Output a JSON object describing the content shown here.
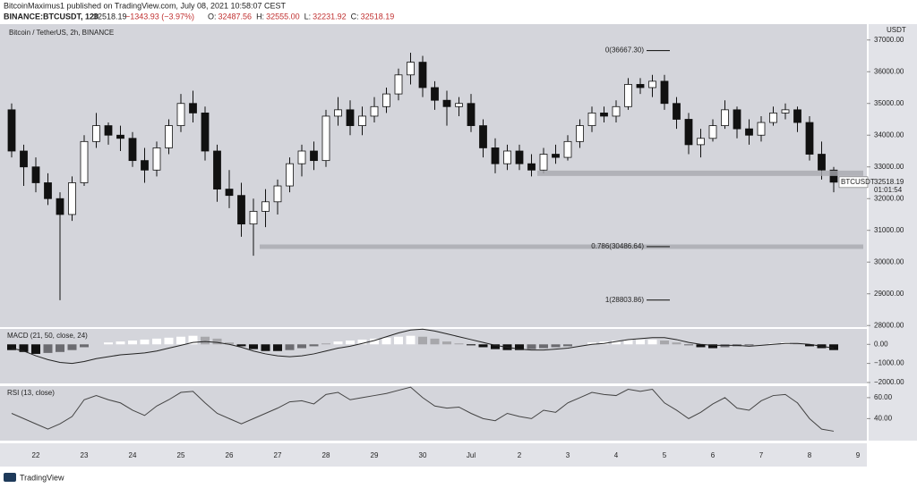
{
  "header": {
    "author_line": "BitcoinMaximus1 published on TradingView.com, July 08, 2021 10:58:07 CEST",
    "symbol": "BINANCE:BTCUSDT, 120",
    "last": "32518.19",
    "change": "−1343.93 (−3.97%)",
    "ohlc": [
      "O:",
      "32487.56",
      "H:",
      "32555.00",
      "L:",
      "32231.92",
      "C:",
      "32518.19"
    ]
  },
  "footer": "TradingView",
  "chart_data": [
    {
      "type": "candlestick",
      "title": "Bitcoin / TetherUS, 2h, BINANCE",
      "axis_unit": "USDT",
      "categories": [
        null,
        null,
        "22",
        null,
        null,
        null,
        "23",
        null,
        null,
        null,
        "24",
        null,
        null,
        null,
        "25",
        null,
        null,
        null,
        "26",
        null,
        null,
        null,
        "27",
        null,
        null,
        null,
        "28",
        null,
        null,
        null,
        "29",
        null,
        null,
        null,
        "30",
        null,
        null,
        null,
        "Jul",
        null,
        null,
        null,
        "2",
        null,
        null,
        null,
        "3",
        null,
        null,
        null,
        "4",
        null,
        null,
        null,
        "5",
        null,
        null,
        null,
        "6",
        null,
        null,
        null,
        "7",
        null,
        null,
        null,
        "8",
        null,
        null,
        null,
        "9"
      ],
      "open": [
        34800,
        33500,
        33000,
        32500,
        32000,
        31500,
        32500,
        33800,
        34300,
        34000,
        33900,
        33200,
        32900,
        33600,
        34300,
        35000,
        34700,
        33500,
        32300,
        32100,
        31200,
        31600,
        31900,
        32400,
        33100,
        33500,
        33200,
        34600,
        34800,
        34300,
        34600,
        34900,
        35300,
        35900,
        36300,
        35500,
        35100,
        34900,
        35000,
        34300,
        33600,
        33100,
        33500,
        33100,
        32900,
        33400,
        33300,
        33800,
        34300,
        34700,
        34600,
        34900,
        35600,
        35500,
        35700,
        35000,
        34500,
        33700,
        33900,
        34300,
        34800,
        34200,
        34000,
        34400,
        34700,
        34800,
        34400,
        33400,
        32900,
        null,
        null
      ],
      "high": [
        35000,
        33700,
        33300,
        32800,
        32200,
        32700,
        34000,
        34700,
        34400,
        34300,
        34100,
        33600,
        33800,
        34500,
        35300,
        35400,
        34900,
        33700,
        32900,
        32500,
        32000,
        32300,
        32600,
        33300,
        33700,
        33800,
        34800,
        35200,
        35100,
        34900,
        35200,
        35500,
        36100,
        36600,
        36500,
        35700,
        35400,
        35200,
        35300,
        34500,
        33900,
        33700,
        33700,
        33400,
        33600,
        33700,
        34000,
        34500,
        34900,
        34900,
        35100,
        35800,
        35800,
        35900,
        35900,
        35200,
        34700,
        34200,
        34500,
        35100,
        34900,
        34500,
        34600,
        34900,
        35000,
        34900,
        34600,
        33800,
        33000,
        null,
        null
      ],
      "low": [
        33300,
        32400,
        32200,
        31800,
        28800,
        31300,
        32400,
        33600,
        33700,
        33500,
        33000,
        32500,
        32700,
        33400,
        34100,
        34400,
        33200,
        31900,
        31700,
        30800,
        30200,
        31100,
        31500,
        32200,
        32700,
        32900,
        33000,
        34300,
        34000,
        34000,
        34400,
        34700,
        35100,
        35600,
        35200,
        34800,
        34300,
        34600,
        34100,
        33300,
        32800,
        32900,
        32900,
        32700,
        32800,
        33100,
        33200,
        33600,
        34100,
        34400,
        34400,
        34800,
        35300,
        35200,
        34800,
        34200,
        33400,
        33300,
        33800,
        34200,
        33900,
        33700,
        33800,
        34300,
        34500,
        34100,
        33200,
        32600,
        32200,
        null,
        null
      ],
      "close": [
        33500,
        33000,
        32500,
        32000,
        31500,
        32500,
        33800,
        34300,
        34000,
        33900,
        33200,
        32900,
        33600,
        34300,
        35000,
        34700,
        33500,
        32300,
        32100,
        31200,
        31600,
        31900,
        32400,
        33100,
        33500,
        33200,
        34600,
        34800,
        34300,
        34600,
        34900,
        35300,
        35900,
        36300,
        35500,
        35100,
        34900,
        35000,
        34300,
        33600,
        33100,
        33500,
        33100,
        32900,
        33400,
        33300,
        33800,
        34300,
        34700,
        34600,
        34900,
        35600,
        35500,
        35700,
        35000,
        34500,
        33700,
        33900,
        34300,
        34800,
        34200,
        34000,
        34400,
        34700,
        34800,
        34400,
        33400,
        32900,
        32518.19,
        null,
        null
      ],
      "up_color": "#ffffff",
      "down_color": "#111111",
      "ylim": [
        27950,
        37500
      ],
      "yticks": [
        {
          "value": 28000,
          "label": "28000.00"
        },
        {
          "value": 29000,
          "label": "29000.00"
        },
        {
          "value": 30000,
          "label": "30000.00"
        },
        {
          "value": 31000,
          "label": "31000.00"
        },
        {
          "value": 32000,
          "label": "32000.00"
        },
        {
          "value": 33000,
          "label": "33000.00"
        },
        {
          "value": 34000,
          "label": "34000.00"
        },
        {
          "value": 35000,
          "label": "35000.00"
        },
        {
          "value": 36000,
          "label": "36000.00"
        },
        {
          "value": 37000,
          "label": "37000.00"
        }
      ],
      "fib_levels": [
        {
          "label": "0(36667.30)",
          "value": 36667.3
        },
        {
          "label": "0.786(30486.64)",
          "value": 30486.64
        },
        {
          "label": "1(28803.86)",
          "value": 28803.86
        }
      ],
      "zones": [
        32800
      ],
      "price_tag": {
        "symbol": "BTCUSDT",
        "price": 32518.19,
        "countdown": "01:01:54"
      }
    },
    {
      "type": "macd",
      "title": "MACD (21, 50, close, 24)",
      "histogram": [
        -300,
        -400,
        -500,
        -450,
        -400,
        -300,
        -150,
        0,
        100,
        150,
        200,
        250,
        300,
        350,
        400,
        450,
        400,
        300,
        100,
        -100,
        -250,
        -350,
        -350,
        -300,
        -200,
        -100,
        50,
        150,
        200,
        250,
        300,
        350,
        400,
        450,
        400,
        300,
        150,
        50,
        -50,
        -150,
        -250,
        -300,
        -300,
        -250,
        -200,
        -150,
        -100,
        0,
        100,
        150,
        200,
        250,
        250,
        250,
        200,
        100,
        -50,
        -150,
        -200,
        -150,
        -100,
        -50,
        0,
        50,
        100,
        50,
        -100,
        -200,
        -300,
        null,
        null
      ],
      "line": [
        -200,
        -350,
        -600,
        -800,
        -950,
        -1000,
        -900,
        -750,
        -650,
        -550,
        -500,
        -450,
        -350,
        -200,
        -50,
        100,
        150,
        100,
        0,
        -150,
        -350,
        -500,
        -600,
        -650,
        -600,
        -500,
        -350,
        -200,
        -100,
        50,
        200,
        400,
        600,
        750,
        800,
        700,
        550,
        400,
        250,
        100,
        -50,
        -150,
        -250,
        -300,
        -300,
        -250,
        -200,
        -100,
        0,
        50,
        150,
        250,
        300,
        350,
        350,
        250,
        100,
        0,
        -50,
        -50,
        -50,
        -100,
        -50,
        0,
        50,
        50,
        0,
        -100,
        -200,
        null,
        null
      ],
      "ylim": [
        -2050,
        810
      ],
      "yticks": [
        {
          "value": 0,
          "label": "0.00"
        },
        {
          "value": -1000,
          "label": "−1000.00"
        },
        {
          "value": -2000,
          "label": "−2000.00"
        }
      ]
    },
    {
      "type": "line",
      "title": "RSI (13, close)",
      "color": "#444444",
      "values": [
        45,
        40,
        35,
        30,
        35,
        42,
        58,
        62,
        58,
        55,
        48,
        43,
        52,
        58,
        65,
        66,
        55,
        45,
        40,
        35,
        40,
        45,
        50,
        56,
        57,
        54,
        63,
        65,
        58,
        60,
        62,
        64,
        67,
        70,
        60,
        52,
        50,
        51,
        45,
        40,
        38,
        45,
        42,
        40,
        48,
        46,
        55,
        60,
        65,
        63,
        62,
        68,
        66,
        68,
        55,
        48,
        40,
        46,
        54,
        60,
        50,
        48,
        57,
        62,
        63,
        55,
        40,
        30,
        28,
        null,
        null
      ],
      "ylim": [
        19,
        71
      ],
      "yticks": [
        {
          "value": 40,
          "label": "40.00"
        },
        {
          "value": 60,
          "label": "60.00"
        }
      ]
    }
  ]
}
